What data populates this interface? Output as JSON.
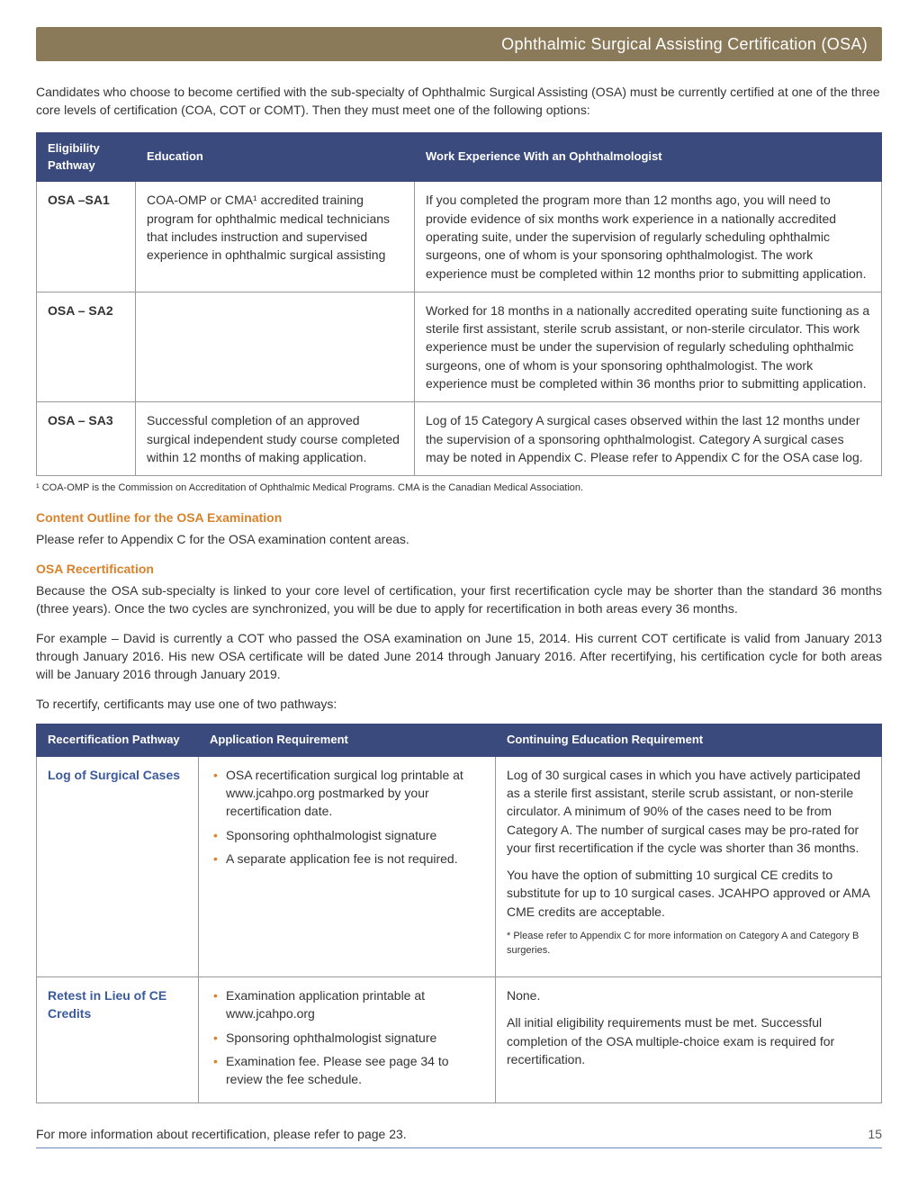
{
  "header": {
    "title": "Ophthalmic Surgical Assisting Certification (OSA)"
  },
  "intro": "Candidates who choose to become certified with the sub-specialty of Ophthalmic Surgical Assisting (OSA) must be currently certified at one of the three core levels of certification (COA, COT or COMT). Then they must meet one of the following options:",
  "eligibility_table": {
    "headers": {
      "c1": "Eligibility Pathway",
      "c2": "Education",
      "c3": "Work Experience With an Ophthalmologist"
    },
    "rows": [
      {
        "pathway": "OSA –SA1",
        "education": "COA-OMP or CMA¹ accredited training program for ophthalmic medical technicians that includes instruction and supervised experience in ophthalmic surgical assisting",
        "work": "If you completed the program more than 12 months ago, you will need to provide evidence of six months work experience in a nationally accredited operating suite, under the supervision of regularly scheduling ophthalmic surgeons, one of whom is your sponsoring ophthalmologist. The work experience must be completed within 12 months prior to submitting application."
      },
      {
        "pathway": "OSA – SA2",
        "education": "",
        "work": "Worked for 18 months in a nationally accredited operating suite functioning as a sterile first assistant, sterile scrub assistant, or non-sterile circulator. This work experience must be under the supervision of regularly scheduling ophthalmic surgeons, one of whom is your sponsoring ophthalmologist. The work experience must be completed within 36 months prior to submitting application."
      },
      {
        "pathway": "OSA – SA3",
        "education": "Successful completion of an approved surgical independent study course completed within 12 months of making application.",
        "work": "Log of 15 Category A surgical cases observed within the last 12 months under the supervision of a sponsoring ophthalmologist. Category A surgical cases may be noted in Appendix C. Please refer to Appendix C for the OSA case log."
      }
    ]
  },
  "footnote": "¹ COA-OMP is the Commission on Accreditation of Ophthalmic Medical Programs. CMA is the Canadian Medical Association.",
  "content_outline": {
    "heading": "Content Outline for the OSA Examination",
    "text": "Please refer to Appendix C for the OSA examination content areas."
  },
  "recert": {
    "heading": "OSA Recertification",
    "p1": "Because the OSA sub-specialty is linked to your core level of certification, your first recertification cycle may be shorter than the standard 36 months (three years). Once the two cycles are synchronized, you will be due to apply for recertification in both areas every 36 months.",
    "p2": "For example – David is currently a COT who passed the OSA examination on June 15, 2014. His current COT certificate is valid from January 2013 through January 2016. His new OSA certificate will be dated June 2014 through January 2016. After recertifying, his certification cycle for both areas will be January 2016 through January 2019.",
    "p3": "To recertify, certificants may use one of two pathways:"
  },
  "recert_table": {
    "headers": {
      "c1": "Recertification Pathway",
      "c2": "Application Requirement",
      "c3": "Continuing Education Requirement"
    },
    "rows": [
      {
        "pathway": "Log of Surgical Cases",
        "app_items": [
          "OSA recertification surgical log printable at www.jcahpo.org postmarked by your recertification date.",
          "Sponsoring ophthalmologist signature",
          "A separate application fee is not required."
        ],
        "ce_p1": "Log of 30 surgical cases in which you have actively participated as a sterile first assistant, sterile scrub assistant, or non-sterile circulator. A minimum of 90% of the cases need to be from Category A. The number of surgical cases may be pro-rated for your first recertification if the cycle was shorter than 36 months.",
        "ce_p2": "You have the option of submitting 10 surgical CE credits to substitute for up to 10 surgical cases. JCAHPO approved or AMA CME credits are acceptable.",
        "ce_note": "* Please refer to Appendix C for more information on Category A and Category B surgeries."
      },
      {
        "pathway": "Retest in Lieu of CE Credits",
        "app_items": [
          "Examination application printable at www.jcahpo.org",
          "Sponsoring ophthalmologist signature",
          "Examination fee. Please see page 34 to review the fee schedule."
        ],
        "ce_p1": "None.",
        "ce_p2": "All initial eligibility requirements must be met. Successful completion of the OSA multiple-choice exam is required for recertification."
      }
    ]
  },
  "footer": {
    "text": "For more information about recertification, please refer to page 23.",
    "page": "15"
  },
  "col_widths": {
    "t1_c1": "110px",
    "t1_c2": "310px",
    "t2_c1": "180px",
    "t2_c2": "330px"
  }
}
